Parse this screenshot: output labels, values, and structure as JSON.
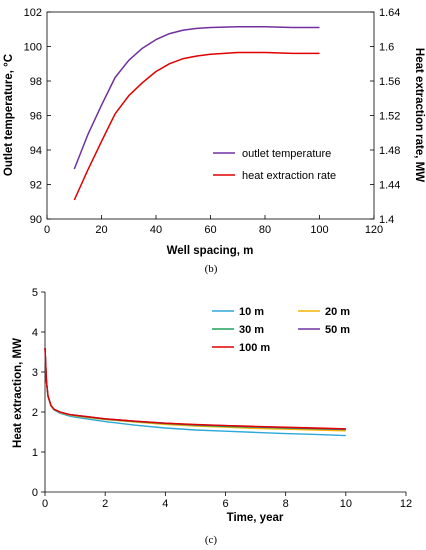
{
  "chart_data": [
    {
      "type": "line",
      "panel_label": "(b)",
      "xlabel": "Well spacing, m",
      "ylabel": "Outlet temperature, °C",
      "y2label": "Heat extraction rate, MW",
      "xlim": [
        0,
        120
      ],
      "ylim": [
        90,
        102
      ],
      "y2lim": [
        1.4,
        1.64
      ],
      "xticks": [
        "0",
        "20",
        "40",
        "60",
        "80",
        "100",
        "120"
      ],
      "yticks": [
        "90",
        "92",
        "94",
        "96",
        "98",
        "100",
        "102"
      ],
      "y2ticks": [
        "1.4",
        "1.44",
        "1.48",
        "1.52",
        "1.56",
        "1.6",
        "1.64"
      ],
      "legend_position": "lower-right",
      "series": [
        {
          "name": "outlet temperature",
          "axis": "left",
          "color": "#7030A0",
          "x": [
            10,
            15,
            20,
            25,
            30,
            35,
            40,
            45,
            50,
            55,
            60,
            70,
            80,
            90,
            100
          ],
          "y": [
            92.9,
            94.9,
            96.6,
            98.2,
            99.2,
            99.9,
            100.4,
            100.75,
            100.95,
            101.05,
            101.1,
            101.15,
            101.15,
            101.1,
            101.1
          ]
        },
        {
          "name": "heat extraction rate",
          "axis": "right",
          "color": "#E00000",
          "x": [
            10,
            15,
            20,
            25,
            30,
            35,
            40,
            45,
            50,
            55,
            60,
            70,
            80,
            90,
            100
          ],
          "y": [
            1.422,
            1.457,
            1.49,
            1.522,
            1.543,
            1.558,
            1.571,
            1.58,
            1.586,
            1.589,
            1.591,
            1.593,
            1.593,
            1.592,
            1.592
          ]
        }
      ]
    },
    {
      "type": "line",
      "panel_label": "(c)",
      "xlabel": "Time, year",
      "ylabel": "Heat extraction, MW",
      "xlim": [
        0,
        12
      ],
      "ylim": [
        0,
        5
      ],
      "xticks": [
        "0",
        "2",
        "4",
        "6",
        "8",
        "10",
        "12"
      ],
      "yticks": [
        "0",
        "1",
        "2",
        "3",
        "4",
        "5"
      ],
      "legend_position": "top-right",
      "series": [
        {
          "name": "10 m",
          "color": "#2EA8D8",
          "x": [
            0,
            0.05,
            0.1,
            0.2,
            0.3,
            0.5,
            0.8,
            1,
            2,
            3,
            4,
            5,
            6,
            7,
            8,
            9,
            10
          ],
          "y": [
            3.6,
            2.75,
            2.4,
            2.15,
            2.05,
            1.97,
            1.9,
            1.87,
            1.76,
            1.67,
            1.6,
            1.55,
            1.52,
            1.49,
            1.46,
            1.44,
            1.41
          ]
        },
        {
          "name": "20 m",
          "color": "#F5B400",
          "x": [
            0,
            0.05,
            0.1,
            0.2,
            0.3,
            0.5,
            0.8,
            1,
            2,
            3,
            4,
            5,
            6,
            7,
            8,
            9,
            10
          ],
          "y": [
            3.6,
            2.75,
            2.4,
            2.15,
            2.06,
            1.99,
            1.93,
            1.9,
            1.81,
            1.75,
            1.69,
            1.65,
            1.62,
            1.59,
            1.57,
            1.55,
            1.53
          ]
        },
        {
          "name": "30 m",
          "color": "#1FA05A",
          "x": [
            0,
            0.05,
            0.1,
            0.2,
            0.3,
            0.5,
            0.8,
            1,
            2,
            3,
            4,
            5,
            6,
            7,
            8,
            9,
            10
          ],
          "y": [
            3.6,
            2.75,
            2.4,
            2.16,
            2.07,
            2.0,
            1.94,
            1.91,
            1.82,
            1.76,
            1.71,
            1.67,
            1.64,
            1.62,
            1.6,
            1.58,
            1.56
          ]
        },
        {
          "name": "50 m",
          "color": "#7030A0",
          "x": [
            0,
            0.05,
            0.1,
            0.2,
            0.3,
            0.5,
            0.8,
            1,
            2,
            3,
            4,
            5,
            6,
            7,
            8,
            9,
            10
          ],
          "y": [
            3.6,
            2.75,
            2.4,
            2.16,
            2.07,
            2.0,
            1.94,
            1.92,
            1.83,
            1.77,
            1.72,
            1.68,
            1.66,
            1.63,
            1.61,
            1.59,
            1.57
          ]
        },
        {
          "name": "100 m",
          "color": "#E00000",
          "x": [
            0,
            0.05,
            0.1,
            0.2,
            0.3,
            0.5,
            0.8,
            1,
            2,
            3,
            4,
            5,
            6,
            7,
            8,
            9,
            10
          ],
          "y": [
            3.6,
            2.75,
            2.4,
            2.16,
            2.07,
            2.0,
            1.94,
            1.92,
            1.83,
            1.77,
            1.72,
            1.69,
            1.66,
            1.64,
            1.62,
            1.6,
            1.58
          ]
        }
      ]
    }
  ]
}
